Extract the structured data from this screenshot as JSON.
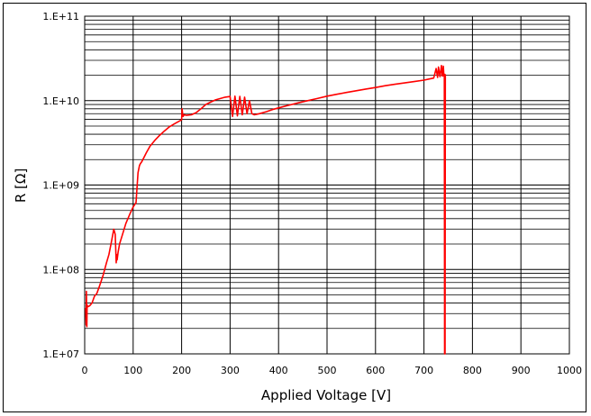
{
  "chart_data": {
    "type": "line",
    "title": "",
    "xlabel": "Applied Voltage [V]",
    "ylabel": "R [Ω]",
    "xlim": [
      0,
      1000
    ],
    "ylim": [
      10000000,
      100000000000
    ],
    "yscale": "log",
    "grid": true,
    "x_ticks": [
      "0",
      "100",
      "200",
      "300",
      "400",
      "500",
      "600",
      "700",
      "800",
      "900",
      "1000"
    ],
    "y_ticks": [
      "1.E+07",
      "1.E+08",
      "1.E+09",
      "1.E+10",
      "1.E+11"
    ],
    "series": [
      {
        "color": "#ff0000",
        "x": [
          2,
          3,
          3.5,
          4.5,
          5,
          6,
          10,
          15,
          20,
          25,
          30,
          38,
          45,
          50,
          55,
          60,
          63,
          65,
          66,
          67,
          69,
          72,
          78,
          85,
          93,
          100,
          106,
          110,
          113,
          115,
          118,
          122,
          127,
          135,
          145,
          155,
          165,
          175,
          185,
          195,
          200,
          201,
          202,
          203,
          205,
          210,
          220,
          230,
          240,
          250,
          260,
          270,
          280,
          290,
          300,
          305,
          310,
          315,
          320,
          325,
          330,
          335,
          340,
          345,
          350,
          360,
          375,
          390,
          400,
          420,
          440,
          460,
          480,
          500,
          520,
          540,
          560,
          580,
          600,
          620,
          640,
          660,
          680,
          700,
          710,
          720,
          725,
          728,
          730,
          733,
          736,
          738,
          740,
          741,
          742,
          742.5,
          743,
          743.5,
          744
        ],
        "y": [
          35000000,
          22000000,
          55000000,
          21000000,
          38000000,
          36000000,
          37000000,
          40000000,
          48000000,
          52000000,
          62000000,
          85000000,
          120000000,
          150000000,
          210000000,
          300000000,
          260000000,
          120000000,
          150000000,
          130000000,
          160000000,
          200000000,
          260000000,
          350000000,
          450000000,
          550000000,
          620000000,
          1400000000,
          1700000000,
          1800000000,
          1900000000,
          2100000000,
          2400000000,
          2900000000,
          3400000000,
          3900000000,
          4400000000,
          4900000000,
          5300000000,
          5700000000,
          5900000000,
          8000000000,
          7000000000,
          6500000000,
          6800000000,
          6700000000,
          6800000000,
          7200000000,
          8000000000,
          9000000000,
          9600000000,
          10200000000,
          10600000000,
          11000000000,
          11200000000,
          6500000000,
          11300000000,
          6600000000,
          11200000000,
          6800000000,
          11000000000,
          7000000000,
          10000000000,
          7000000000,
          6800000000,
          7000000000,
          7400000000,
          7900000000,
          8200000000,
          8800000000,
          9400000000,
          10000000000,
          10600000000,
          11300000000,
          11900000000,
          12500000000,
          13100000000,
          13700000000,
          14300000000,
          15000000000,
          15600000000,
          16200000000,
          16800000000,
          17500000000,
          18000000000,
          18500000000,
          24000000000,
          18800000000,
          25000000000,
          19200000000,
          26000000000,
          19500000000,
          25500000000,
          19600000000,
          20000000000,
          10000000,
          20500000000,
          10000000,
          20500000000
        ]
      }
    ]
  }
}
